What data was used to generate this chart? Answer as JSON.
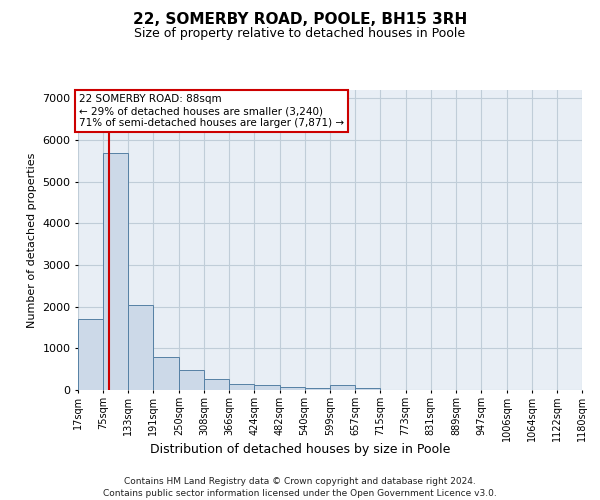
{
  "title": "22, SOMERBY ROAD, POOLE, BH15 3RH",
  "subtitle": "Size of property relative to detached houses in Poole",
  "xlabel": "Distribution of detached houses by size in Poole",
  "ylabel": "Number of detached properties",
  "footer_line1": "Contains HM Land Registry data © Crown copyright and database right 2024.",
  "footer_line2": "Contains public sector information licensed under the Open Government Licence v3.0.",
  "annotation_line1": "22 SOMERBY ROAD: 88sqm",
  "annotation_line2": "← 29% of detached houses are smaller (3,240)",
  "annotation_line3": "71% of semi-detached houses are larger (7,871) →",
  "property_size": 88,
  "bar_color": "#ccd9e8",
  "bar_edge_color": "#5580a4",
  "red_line_color": "#cc0000",
  "background_color": "#ffffff",
  "plot_bg_color": "#e8eef5",
  "grid_color": "#c0cdd8",
  "bin_edges": [
    17,
    75,
    133,
    191,
    250,
    308,
    366,
    424,
    482,
    540,
    599,
    657,
    715,
    773,
    831,
    889,
    947,
    1006,
    1064,
    1122,
    1180
  ],
  "bar_heights": [
    1700,
    5700,
    2050,
    800,
    490,
    270,
    150,
    110,
    75,
    50,
    110,
    55,
    0,
    0,
    0,
    0,
    0,
    0,
    0,
    0
  ],
  "ylim": [
    0,
    7200
  ],
  "yticks": [
    0,
    1000,
    2000,
    3000,
    4000,
    5000,
    6000,
    7000
  ]
}
